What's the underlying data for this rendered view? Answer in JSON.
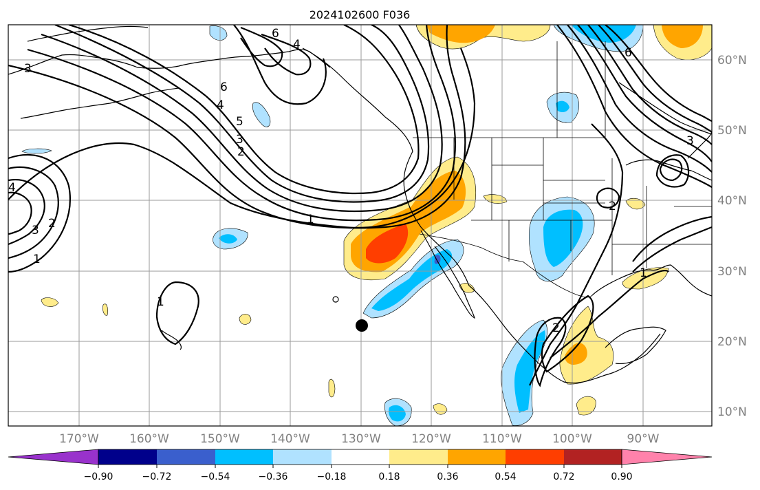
{
  "title": "2024102600 F036",
  "lon_labels": [
    "170°W",
    "160°W",
    "150°W",
    "140°W",
    "130°W",
    "120°W",
    "110°W",
    "100°W",
    "90°W"
  ],
  "lat_labels": [
    "60°N",
    "50°N",
    "40°N",
    "30°N",
    "20°N",
    "10°N"
  ],
  "colorbar": {
    "colors": [
      "#9932cc",
      "#00008b",
      "#3a5fcd",
      "#00bfff",
      "#b0e2ff",
      "#ffffff",
      "#ffec8b",
      "#ffa500",
      "#ff3e00",
      "#b22222",
      "#ff82ab"
    ],
    "tick_labels": [
      "−0.90",
      "−0.72",
      "−0.54",
      "−0.36",
      "−0.18",
      "0.18",
      "0.36",
      "0.54",
      "0.72",
      "0.90"
    ]
  },
  "contour_labels": [
    "6",
    "4",
    "3",
    "6",
    "4",
    "5",
    "3",
    "2",
    "1",
    "4",
    "3",
    "2",
    "1",
    "1",
    "6",
    "3",
    "2",
    "2",
    "1"
  ],
  "fill_colors": {
    "pale_yellow": "#ffec8b",
    "orange": "#ffa500",
    "red_orange": "#ff3e00",
    "light_blue": "#b0e2ff",
    "cyan": "#00bfff",
    "medium_blue": "#3a5fcd"
  },
  "marker": "black-dot"
}
